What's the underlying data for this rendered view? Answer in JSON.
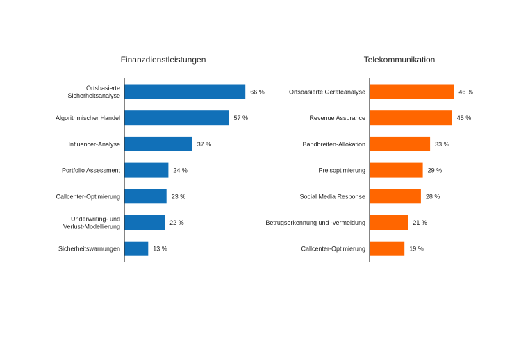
{
  "chart_data": [
    {
      "type": "bar",
      "orientation": "horizontal",
      "title": "Finanzdienstleistungen",
      "color": "#1170b8",
      "unit": "%",
      "xlim": [
        0,
        100
      ],
      "grid": false,
      "categories": [
        [
          "Ortsbasierte",
          "Sicherheitsanalyse"
        ],
        [
          "Algorithmischer Handel"
        ],
        [
          "Influencer-Analyse"
        ],
        [
          "Portfolio Assessment"
        ],
        [
          "Callcenter-Optimierung"
        ],
        [
          "Underwriting- und",
          "Verlust-Modellierung"
        ],
        [
          "Sicherheitswarnungen"
        ]
      ],
      "values": [
        66,
        57,
        37,
        24,
        23,
        22,
        13
      ],
      "labels": [
        "66 %",
        "57 %",
        "37 %",
        "24 %",
        "23 %",
        "22 %",
        "13 %"
      ]
    },
    {
      "type": "bar",
      "orientation": "horizontal",
      "title": "Telekommunikation",
      "color": "#ff6600",
      "unit": "%",
      "xlim": [
        0,
        100
      ],
      "grid": false,
      "categories": [
        [
          "Ortsbasierte Geräteanalyse"
        ],
        [
          "Revenue Assurance"
        ],
        [
          "Bandbreiten-Allokation"
        ],
        [
          "Preisoptimierung"
        ],
        [
          "Social Media Response"
        ],
        [
          "Betrugserkennung und -vermeidung"
        ],
        [
          "Callcenter-Optimierung"
        ]
      ],
      "values": [
        46,
        45,
        33,
        29,
        28,
        21,
        19
      ],
      "labels": [
        "46 %",
        "45 %",
        "33 %",
        "29 %",
        "28 %",
        "21 %",
        "19 %"
      ]
    }
  ]
}
